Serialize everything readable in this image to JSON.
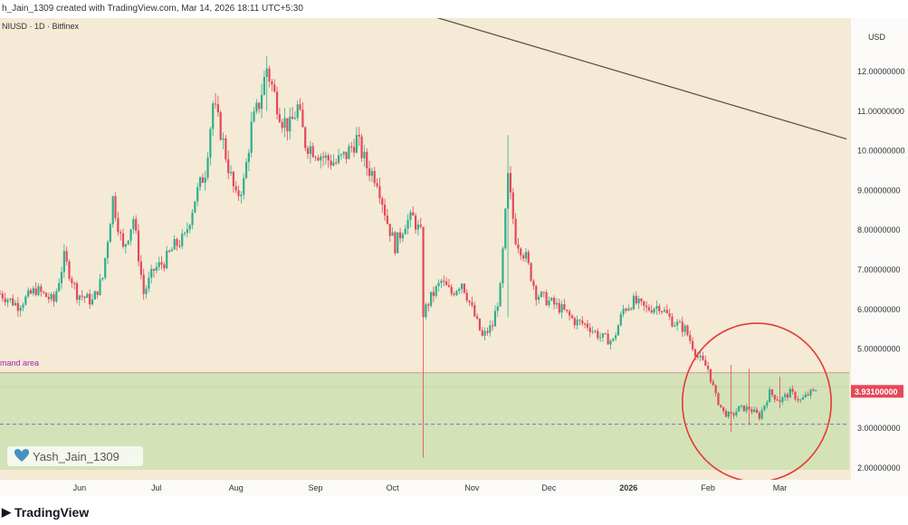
{
  "header": {
    "caption": "h_Jain_1309 created with TradingView.com, Mar 14, 2026 18:11 UTC+5:30",
    "symbol": "NIUSD · 1D · Bitfinex"
  },
  "chart_data": {
    "type": "candlestick",
    "currency_label": "USD",
    "y_ticks": [
      "12.00000000",
      "11.00000000",
      "10.00000000",
      "9.00000000",
      "8.00000000",
      "7.00000000",
      "6.00000000",
      "5.00000000",
      "3.00000000",
      "2.00000000"
    ],
    "y_tick_values": [
      12,
      11,
      10,
      9,
      8,
      7,
      6,
      5,
      3,
      2
    ],
    "ylim": [
      1.7,
      13.35
    ],
    "x_labels": [
      "Jun",
      "Jul",
      "Aug",
      "Sep",
      "Oct",
      "Nov",
      "Dec",
      "2026",
      "Feb",
      "Mar"
    ],
    "x_label_dates": [
      "2025-06-01",
      "2025-07-01",
      "2025-08-01",
      "2025-09-01",
      "2025-10-01",
      "2025-11-01",
      "2025-12-01",
      "2026-01-01",
      "2026-02-01",
      "2026-03-01"
    ],
    "date_range": [
      "2025-05-01",
      "2026-03-28"
    ],
    "last_price_label": "3.93100000",
    "last_price": 3.931,
    "zone": {
      "label": "mand area",
      "top": 4.4,
      "bottom": 1.95,
      "mid_line": 4.05,
      "dashed_line": 3.1
    },
    "trendline": {
      "start": {
        "date": "2025-09-15",
        "value": 14.0
      },
      "end": {
        "date": "2026-03-27",
        "value": 10.3
      }
    },
    "circle_highlight": {
      "center_date": "2026-02-20",
      "center_value": 3.65,
      "radius_days": 29,
      "radius_value": 2.0
    },
    "closes": [
      {
        "d": "2025-05-01",
        "c": 6.4
      },
      {
        "d": "2025-05-08",
        "c": 6.1
      },
      {
        "d": "2025-05-15",
        "c": 6.5
      },
      {
        "d": "2025-05-22",
        "c": 6.2
      },
      {
        "d": "2025-05-26",
        "c": 7.3
      },
      {
        "d": "2025-05-31",
        "c": 6.4
      },
      {
        "d": "2025-06-06",
        "c": 6.2
      },
      {
        "d": "2025-06-10",
        "c": 6.8
      },
      {
        "d": "2025-06-14",
        "c": 8.8
      },
      {
        "d": "2025-06-18",
        "c": 7.5
      },
      {
        "d": "2025-06-22",
        "c": 8.3
      },
      {
        "d": "2025-06-26",
        "c": 6.4
      },
      {
        "d": "2025-06-30",
        "c": 7.0
      },
      {
        "d": "2025-07-04",
        "c": 7.2
      },
      {
        "d": "2025-07-08",
        "c": 7.6
      },
      {
        "d": "2025-07-12",
        "c": 7.8
      },
      {
        "d": "2025-07-16",
        "c": 8.8
      },
      {
        "d": "2025-07-20",
        "c": 9.5
      },
      {
        "d": "2025-07-23",
        "c": 11.2
      },
      {
        "d": "2025-07-26",
        "c": 10.5
      },
      {
        "d": "2025-07-29",
        "c": 9.6
      },
      {
        "d": "2025-08-01",
        "c": 8.8
      },
      {
        "d": "2025-08-04",
        "c": 9.2
      },
      {
        "d": "2025-08-07",
        "c": 10.6
      },
      {
        "d": "2025-08-10",
        "c": 11.2
      },
      {
        "d": "2025-08-13",
        "c": 12.1
      },
      {
        "d": "2025-08-16",
        "c": 11.4
      },
      {
        "d": "2025-08-19",
        "c": 10.8
      },
      {
        "d": "2025-08-22",
        "c": 10.6
      },
      {
        "d": "2025-08-25",
        "c": 11.1
      },
      {
        "d": "2025-08-28",
        "c": 10.2
      },
      {
        "d": "2025-09-01",
        "c": 10.0
      },
      {
        "d": "2025-09-05",
        "c": 9.8
      },
      {
        "d": "2025-09-09",
        "c": 9.7
      },
      {
        "d": "2025-09-13",
        "c": 9.9
      },
      {
        "d": "2025-09-17",
        "c": 10.3
      },
      {
        "d": "2025-09-21",
        "c": 9.6
      },
      {
        "d": "2025-09-25",
        "c": 9.3
      },
      {
        "d": "2025-09-29",
        "c": 8.2
      },
      {
        "d": "2025-10-02",
        "c": 7.6
      },
      {
        "d": "2025-10-06",
        "c": 8.2
      },
      {
        "d": "2025-10-09",
        "c": 8.3
      },
      {
        "d": "2025-10-12",
        "c": 7.9
      },
      {
        "d": "2025-10-13",
        "c": 5.9
      },
      {
        "d": "2025-10-16",
        "c": 6.3
      },
      {
        "d": "2025-10-20",
        "c": 6.7
      },
      {
        "d": "2025-10-24",
        "c": 6.4
      },
      {
        "d": "2025-10-28",
        "c": 6.7
      },
      {
        "d": "2025-11-01",
        "c": 6.0
      },
      {
        "d": "2025-11-05",
        "c": 5.3
      },
      {
        "d": "2025-11-09",
        "c": 5.6
      },
      {
        "d": "2025-11-12",
        "c": 6.5
      },
      {
        "d": "2025-11-15",
        "c": 9.3
      },
      {
        "d": "2025-11-18",
        "c": 7.8
      },
      {
        "d": "2025-11-22",
        "c": 7.3
      },
      {
        "d": "2025-11-26",
        "c": 6.4
      },
      {
        "d": "2025-12-01",
        "c": 6.2
      },
      {
        "d": "2025-12-06",
        "c": 6.0
      },
      {
        "d": "2025-12-11",
        "c": 5.7
      },
      {
        "d": "2025-12-16",
        "c": 5.6
      },
      {
        "d": "2025-12-21",
        "c": 5.3
      },
      {
        "d": "2025-12-26",
        "c": 5.2
      },
      {
        "d": "2025-12-30",
        "c": 6.0
      },
      {
        "d": "2026-01-03",
        "c": 6.2
      },
      {
        "d": "2026-01-08",
        "c": 6.0
      },
      {
        "d": "2026-01-13",
        "c": 6.1
      },
      {
        "d": "2026-01-18",
        "c": 5.7
      },
      {
        "d": "2026-01-23",
        "c": 5.5
      },
      {
        "d": "2026-01-28",
        "c": 4.8
      },
      {
        "d": "2026-02-01",
        "c": 4.5
      },
      {
        "d": "2026-02-04",
        "c": 3.8
      },
      {
        "d": "2026-02-07",
        "c": 3.4
      },
      {
        "d": "2026-02-10",
        "c": 3.3
      },
      {
        "d": "2026-02-13",
        "c": 3.5
      },
      {
        "d": "2026-02-17",
        "c": 3.5
      },
      {
        "d": "2026-02-21",
        "c": 3.3
      },
      {
        "d": "2026-02-25",
        "c": 3.9
      },
      {
        "d": "2026-03-01",
        "c": 3.7
      },
      {
        "d": "2026-03-05",
        "c": 3.9
      },
      {
        "d": "2026-03-09",
        "c": 3.7
      },
      {
        "d": "2026-03-13",
        "c": 3.9
      },
      {
        "d": "2026-03-15",
        "c": 3.931
      }
    ],
    "wick_spikes": [
      {
        "d": "2025-10-13",
        "low": 2.25,
        "high": 7.8
      },
      {
        "d": "2025-11-15",
        "low": 5.8,
        "high": 10.4
      },
      {
        "d": "2026-02-10",
        "low": 2.9,
        "high": 4.6
      },
      {
        "d": "2026-02-17",
        "low": 3.1,
        "high": 4.5
      },
      {
        "d": "2025-08-13",
        "low": 11.0,
        "high": 12.4
      },
      {
        "d": "2026-03-01",
        "low": 3.5,
        "high": 4.3
      }
    ]
  },
  "watermark": {
    "username": "Yash_Jain_1309"
  },
  "footer": {
    "brand": "TradingView"
  }
}
